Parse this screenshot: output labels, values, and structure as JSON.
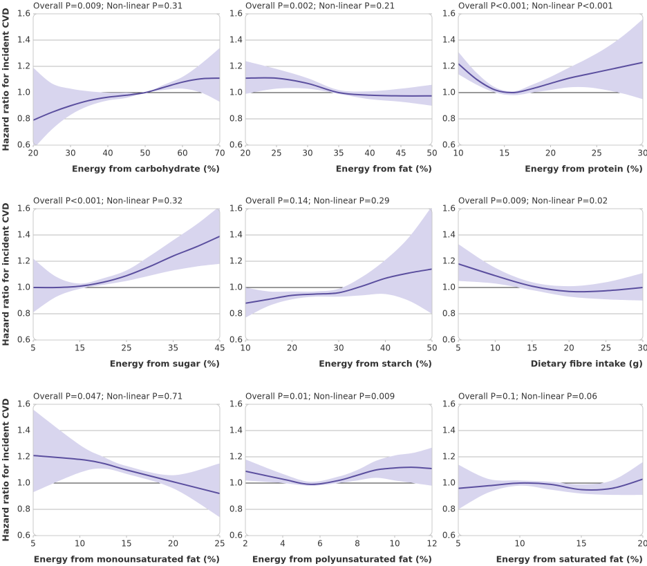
{
  "chart_data": [
    {
      "type": "line",
      "title": "Overall P=0.009; Non-linear P=0.31",
      "xlabel": "Energy from carbohydrate (%)",
      "ylabel": "Hazard ratio for incident CVD",
      "x": [
        20,
        25,
        30,
        35,
        40,
        45,
        50,
        55,
        60,
        65,
        70
      ],
      "values": [
        0.79,
        0.85,
        0.9,
        0.94,
        0.965,
        0.98,
        1.0,
        1.04,
        1.08,
        1.105,
        1.11
      ],
      "lower": [
        0.57,
        0.72,
        0.83,
        0.9,
        0.94,
        0.96,
        1.0,
        1.02,
        1.03,
        1.0,
        0.93
      ],
      "upper": [
        1.19,
        1.07,
        1.03,
        1.01,
        1.0,
        1.0,
        1.0,
        1.06,
        1.12,
        1.22,
        1.34
      ],
      "xlim": [
        20,
        70
      ],
      "xticks": [
        20,
        30,
        40,
        50,
        60,
        70
      ],
      "ylim": [
        0.6,
        1.6
      ],
      "yticks": [
        0.6,
        0.8,
        {
          "value": 1,
          "label": "1.0"
        },
        1.2,
        1.4,
        1.6
      ],
      "reference_line": 1,
      "color": "#5a4e9e",
      "band_color": "#d8d5ee"
    },
    {
      "type": "line",
      "title": "Overall P=0.002; Non-linear P=0.21",
      "xlabel": "Energy from fat (%)",
      "x": [
        20,
        25,
        30,
        35,
        40,
        45,
        50
      ],
      "values": [
        1.11,
        1.11,
        1.07,
        1.0,
        0.98,
        0.975,
        0.975
      ],
      "lower": [
        0.99,
        1.03,
        1.03,
        0.99,
        0.95,
        0.93,
        0.9
      ],
      "upper": [
        1.24,
        1.18,
        1.11,
        1.02,
        1.01,
        1.03,
        1.06
      ],
      "xlim": [
        20,
        50
      ],
      "xticks": [
        20,
        25,
        30,
        35,
        40,
        45,
        50
      ],
      "ylim": [
        0.6,
        1.6
      ],
      "yticks": [
        0.6,
        0.8,
        {
          "value": 1,
          "label": "1.0"
        },
        1.2,
        1.4,
        1.6
      ],
      "reference_line": 1,
      "color": "#5a4e9e",
      "band_color": "#d8d5ee"
    },
    {
      "type": "line",
      "title": "Overall P<0.001; Non-linear P<0.001",
      "xlabel": "Energy from protein (%)",
      "x": [
        10,
        12,
        14,
        16,
        18,
        20,
        22,
        24,
        26,
        28,
        30
      ],
      "values": [
        1.22,
        1.1,
        1.02,
        1.0,
        1.03,
        1.07,
        1.11,
        1.14,
        1.17,
        1.2,
        1.23
      ],
      "lower": [
        1.14,
        1.06,
        1.0,
        0.98,
        1.0,
        1.02,
        1.04,
        1.04,
        1.02,
        0.99,
        0.95
      ],
      "upper": [
        1.31,
        1.15,
        1.04,
        1.01,
        1.06,
        1.12,
        1.19,
        1.26,
        1.34,
        1.44,
        1.56
      ],
      "xlim": [
        10,
        30
      ],
      "xticks": [
        10,
        15,
        20,
        25,
        30
      ],
      "ylim": [
        0.6,
        1.6
      ],
      "yticks": [
        0.6,
        0.8,
        {
          "value": 1,
          "label": "1.0"
        },
        1.2,
        1.4,
        1.6
      ],
      "reference_line": 1,
      "color": "#5a4e9e",
      "band_color": "#d8d5ee"
    },
    {
      "type": "line",
      "title": "Overall P<0.001; Non-linear P=0.32",
      "xlabel": "Energy from sugar (%)",
      "ylabel": "Hazard ratio for incident CVD",
      "x": [
        5,
        10,
        15,
        20,
        25,
        30,
        35,
        40,
        45
      ],
      "values": [
        1.0,
        1.0,
        1.01,
        1.04,
        1.09,
        1.16,
        1.24,
        1.31,
        1.39
      ],
      "lower": [
        0.81,
        0.93,
        0.99,
        1.02,
        1.05,
        1.09,
        1.13,
        1.16,
        1.18
      ],
      "upper": [
        1.22,
        1.08,
        1.03,
        1.07,
        1.13,
        1.24,
        1.36,
        1.48,
        1.62
      ],
      "xlim": [
        5,
        45
      ],
      "xticks": [
        5,
        15,
        25,
        35,
        45
      ],
      "ylim": [
        0.6,
        1.6
      ],
      "yticks": [
        0.6,
        0.8,
        {
          "value": 1,
          "label": "1.0"
        },
        1.2,
        1.4,
        1.6
      ],
      "reference_line": 1,
      "color": "#5a4e9e",
      "band_color": "#d8d5ee"
    },
    {
      "type": "line",
      "title": "Overall P=0.14; Non-linear P=0.29",
      "xlabel": "Energy from starch (%)",
      "x": [
        10,
        15,
        20,
        25,
        30,
        35,
        40,
        45,
        50
      ],
      "values": [
        0.88,
        0.91,
        0.94,
        0.95,
        0.96,
        1.01,
        1.07,
        1.11,
        1.14
      ],
      "lower": [
        0.77,
        0.86,
        0.91,
        0.93,
        0.93,
        0.94,
        0.95,
        0.9,
        0.8
      ],
      "upper": [
        1.0,
        0.97,
        0.97,
        0.97,
        0.99,
        1.08,
        1.21,
        1.38,
        1.62
      ],
      "xlim": [
        10,
        50
      ],
      "xticks": [
        10,
        20,
        30,
        40,
        50
      ],
      "ylim": [
        0.6,
        1.6
      ],
      "yticks": [
        0.6,
        0.8,
        {
          "value": 1,
          "label": "1.0"
        },
        1.2,
        1.4,
        1.6
      ],
      "reference_line": 1,
      "color": "#5a4e9e",
      "band_color": "#d8d5ee"
    },
    {
      "type": "line",
      "title": "Overall P=0.009; Non-linear P=0.02",
      "xlabel": "Dietary fibre intake (g)",
      "x": [
        5,
        10,
        15,
        20,
        25,
        30
      ],
      "values": [
        1.18,
        1.09,
        1.01,
        0.97,
        0.975,
        1.0
      ],
      "lower": [
        1.05,
        1.03,
        0.98,
        0.93,
        0.91,
        0.9
      ],
      "upper": [
        1.33,
        1.15,
        1.04,
        1.01,
        1.04,
        1.11
      ],
      "xlim": [
        5,
        30
      ],
      "xticks": [
        5,
        10,
        15,
        20,
        25,
        30
      ],
      "ylim": [
        0.6,
        1.6
      ],
      "yticks": [
        0.6,
        0.8,
        {
          "value": 1,
          "label": "1.0"
        },
        1.2,
        1.4,
        1.6
      ],
      "reference_line": 1,
      "color": "#5a4e9e",
      "band_color": "#d8d5ee"
    },
    {
      "type": "line",
      "title": "Overall P=0.047; Non-linear P=0.71",
      "xlabel": "Energy from monounsaturated fat (%)",
      "ylabel": "Hazard ratio for incident CVD",
      "x": [
        5,
        10,
        12.5,
        15,
        20,
        25
      ],
      "values": [
        1.21,
        1.18,
        1.15,
        1.1,
        1.01,
        0.92
      ],
      "lower": [
        0.93,
        1.08,
        1.11,
        1.07,
        0.96,
        0.74
      ],
      "upper": [
        1.56,
        1.29,
        1.2,
        1.13,
        1.06,
        1.15
      ],
      "xlim": [
        5,
        25
      ],
      "xticks": [
        5,
        10,
        15,
        20,
        25
      ],
      "ylim": [
        0.6,
        1.6
      ],
      "yticks": [
        0.6,
        0.8,
        {
          "value": 1,
          "label": "1.0"
        },
        1.2,
        1.4,
        1.6
      ],
      "reference_line": 1,
      "color": "#5a4e9e",
      "band_color": "#d8d5ee"
    },
    {
      "type": "line",
      "title": "Overall P=0.01; Non-linear P=0.009",
      "xlabel": "Energy from polyunsaturated fat (%)",
      "x": [
        2,
        4,
        5.5,
        7,
        8,
        9,
        10,
        11,
        12
      ],
      "values": [
        1.09,
        1.03,
        0.99,
        1.02,
        1.06,
        1.1,
        1.115,
        1.12,
        1.11
      ],
      "lower": [
        1.02,
        1.0,
        0.98,
        1.0,
        1.02,
        1.04,
        1.02,
        1.0,
        0.98
      ],
      "upper": [
        1.18,
        1.07,
        1.01,
        1.05,
        1.1,
        1.17,
        1.21,
        1.23,
        1.27
      ],
      "xlim": [
        2,
        12
      ],
      "xticks": [
        2,
        4,
        6,
        8,
        10,
        12
      ],
      "ylim": [
        0.6,
        1.6
      ],
      "yticks": [
        0.6,
        0.8,
        {
          "value": 1,
          "label": "1.0"
        },
        1.2,
        1.4,
        1.6
      ],
      "reference_line": 1,
      "color": "#5a4e9e",
      "band_color": "#d8d5ee"
    },
    {
      "type": "line",
      "title": "Overall P=0.1; Non-linear P=0.06",
      "xlabel": "Energy from saturated fat (%)",
      "x": [
        5,
        7.5,
        10,
        12.5,
        15,
        17.5,
        20
      ],
      "values": [
        0.96,
        0.98,
        1.0,
        0.99,
        0.95,
        0.96,
        1.03
      ],
      "lower": [
        0.8,
        0.93,
        0.98,
        0.95,
        0.92,
        0.91,
        0.91
      ],
      "upper": [
        1.14,
        1.03,
        1.02,
        1.01,
        0.99,
        1.02,
        1.16
      ],
      "xlim": [
        5,
        20
      ],
      "xticks": [
        5,
        10,
        15,
        20
      ],
      "ylim": [
        0.6,
        1.6
      ],
      "yticks": [
        0.6,
        0.8,
        {
          "value": 1,
          "label": "1.0"
        },
        1.2,
        1.4,
        1.6
      ],
      "reference_line": 1,
      "color": "#5a4e9e",
      "band_color": "#d8d5ee"
    }
  ]
}
